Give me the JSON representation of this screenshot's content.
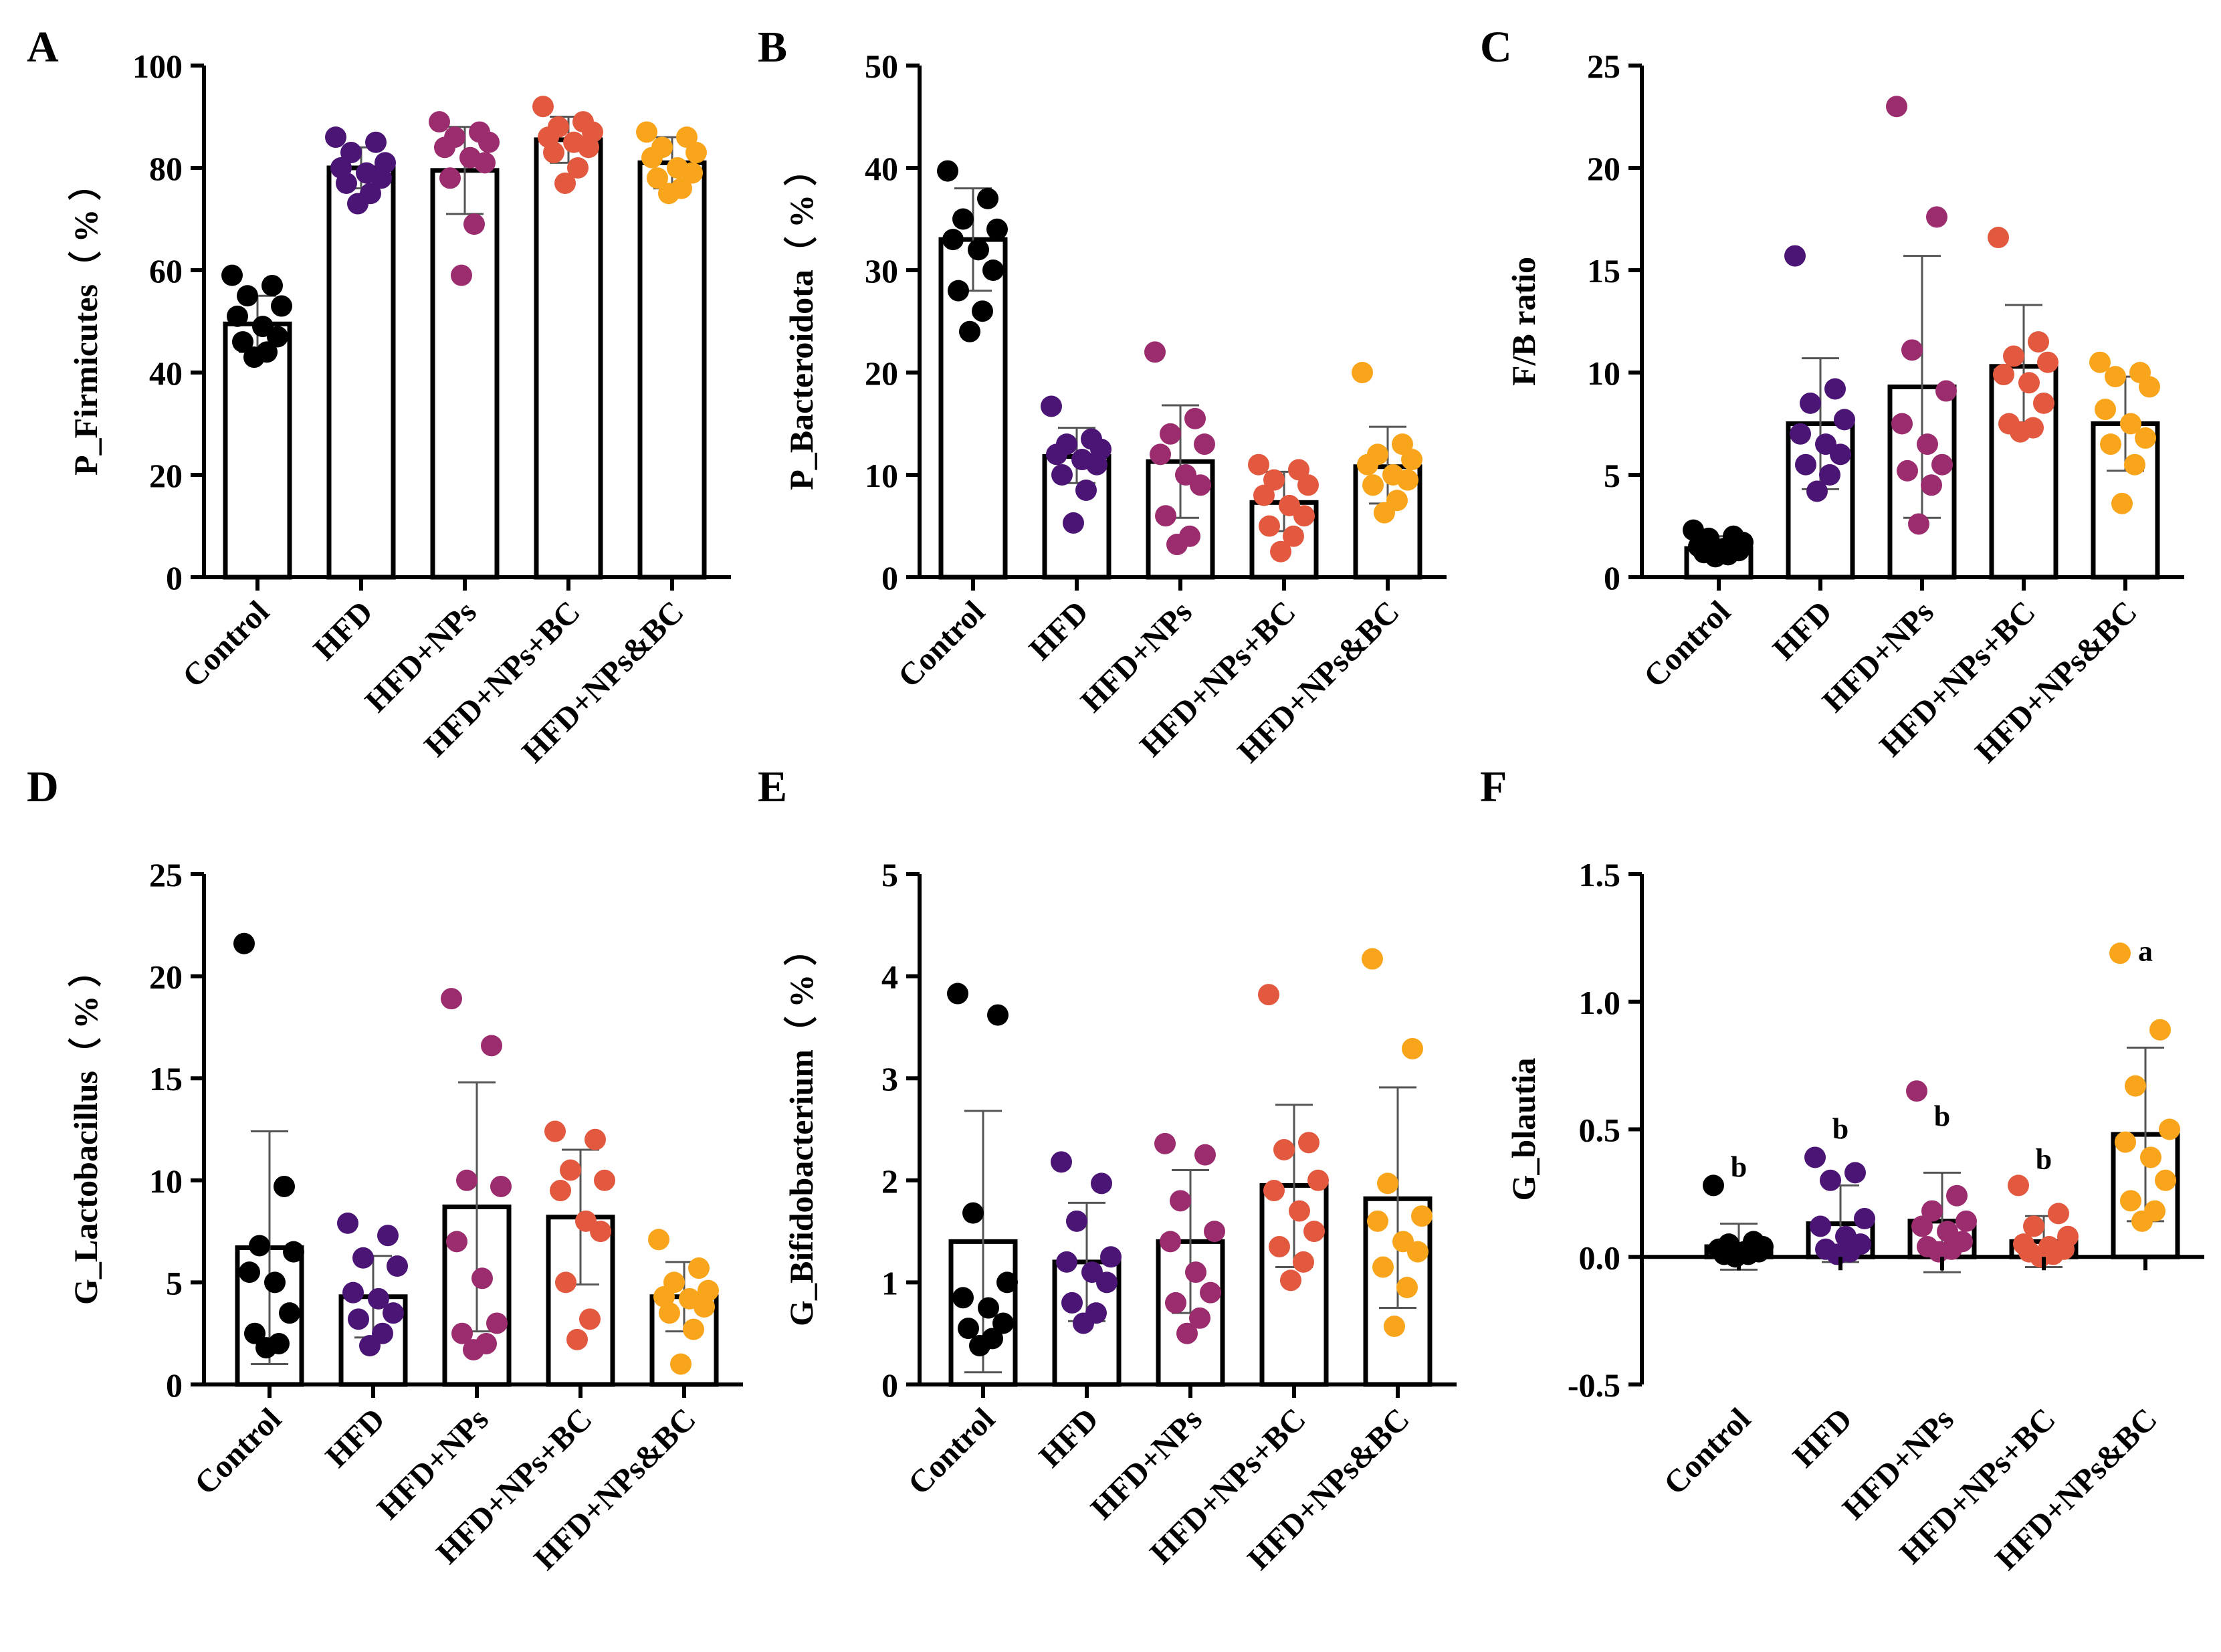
{
  "groups": [
    "Control",
    "HFD",
    "HFD+NPs",
    "HFD+NPs+BC",
    "HFD+NPs&BC"
  ],
  "colors": [
    "#000000",
    "#4b1576",
    "#9b2c6e",
    "#e2593f",
    "#f8a51c"
  ],
  "chart_data": [
    {
      "letter": "A",
      "type": "bar",
      "ylabel": "P_Firmicutes（ % ）",
      "ylim": [
        0,
        100
      ],
      "yticks": [
        "0",
        "20",
        "40",
        "60",
        "80",
        "100"
      ],
      "categories": [
        "Control",
        "HFD",
        "HFD+NPs",
        "HFD+NPs+BC",
        "HFD+NPs&BC"
      ],
      "means": [
        49.5,
        80,
        79.5,
        85.5,
        81
      ],
      "err_low": [
        44,
        76,
        71,
        81,
        76
      ],
      "err_high": [
        55,
        84,
        88,
        90,
        86
      ],
      "points": [
        [
          59,
          57,
          55,
          53,
          51,
          49,
          47,
          46,
          44,
          43
        ],
        [
          86,
          85,
          83,
          81,
          80,
          79,
          78,
          77,
          75,
          73
        ],
        [
          89,
          87,
          86,
          85,
          84,
          82,
          81,
          78,
          69,
          59
        ],
        [
          92,
          89,
          88,
          87,
          86,
          85,
          84,
          83,
          80,
          77
        ],
        [
          87,
          86,
          84,
          83,
          82,
          80,
          79,
          78,
          76,
          75
        ]
      ],
      "annotations": []
    },
    {
      "letter": "B",
      "type": "bar",
      "ylabel": "P_Bacteroidota（ % ）",
      "ylim": [
        0,
        50
      ],
      "yticks": [
        "0",
        "10",
        "20",
        "30",
        "40",
        "50"
      ],
      "categories": [
        "Control",
        "HFD",
        "HFD+NPs",
        "HFD+NPs+BC",
        "HFD+NPs&BC"
      ],
      "means": [
        33,
        11.8,
        11.3,
        7.3,
        10.8
      ],
      "err_low": [
        28,
        9.2,
        5.8,
        4.5,
        7.2
      ],
      "err_high": [
        38,
        14.6,
        16.8,
        10.3,
        14.7
      ],
      "points": [
        [
          39.7,
          37,
          35,
          34,
          33,
          32,
          30,
          28,
          26,
          24
        ],
        [
          16.7,
          13.5,
          13,
          12.5,
          12,
          11.5,
          11,
          10,
          8.5,
          5.3
        ],
        [
          22,
          15.5,
          14,
          13,
          12,
          10,
          9,
          6,
          4,
          3.2
        ],
        [
          11,
          10.5,
          9.5,
          9,
          8,
          7,
          6,
          5,
          4,
          2.5
        ],
        [
          20,
          13,
          12,
          11.5,
          11,
          10,
          9.5,
          9,
          7.5,
          6.3
        ]
      ],
      "annotations": []
    },
    {
      "letter": "C",
      "type": "bar",
      "ylabel": "F/B ratio",
      "ylim": [
        0,
        25
      ],
      "yticks": [
        "0",
        "5",
        "10",
        "15",
        "20",
        "25"
      ],
      "categories": [
        "Control",
        "HFD",
        "HFD+NPs",
        "HFD+NPs+BC",
        "HFD+NPs&BC"
      ],
      "means": [
        1.4,
        7.5,
        9.3,
        10.3,
        7.5
      ],
      "err_low": [
        0.9,
        4.3,
        2.9,
        7.3,
        5.2
      ],
      "err_high": [
        2.0,
        10.7,
        15.7,
        13.3,
        9.8
      ],
      "points": [
        [
          2.3,
          2.0,
          1.9,
          1.7,
          1.5,
          1.4,
          1.3,
          1.2,
          1.1,
          1.0
        ],
        [
          15.7,
          9.2,
          8.5,
          7.7,
          7,
          6.5,
          6,
          5.5,
          5,
          4.2
        ],
        [
          23,
          17.6,
          11.1,
          9.1,
          7.5,
          6.5,
          5.5,
          5.2,
          4.5,
          2.6
        ],
        [
          16.6,
          11.5,
          10.8,
          10.5,
          9.9,
          9.5,
          8.5,
          7.5,
          7.3,
          7.1
        ],
        [
          10.5,
          10,
          9.8,
          9.3,
          8.2,
          7.5,
          6.8,
          6.5,
          5.5,
          3.6
        ]
      ],
      "annotations": []
    },
    {
      "letter": "D",
      "type": "bar",
      "ylabel": "G_Lactobacillus（ % ）",
      "ylim": [
        0,
        25
      ],
      "yticks": [
        "0",
        "5",
        "10",
        "15",
        "20",
        "25"
      ],
      "categories": [
        "Control",
        "HFD",
        "HFD+NPs",
        "HFD+NPs+BC",
        "HFD+NPs&BC"
      ],
      "means": [
        6.7,
        4.3,
        8.7,
        8.2,
        4.3
      ],
      "err_low": [
        1.0,
        2.3,
        2.6,
        4.9,
        2.6
      ],
      "err_high": [
        12.4,
        6.3,
        14.8,
        11.5,
        6.0
      ],
      "points": [
        [
          21.6,
          9.7,
          6.8,
          6.5,
          5.5,
          5.0,
          3.5,
          2.5,
          2.0,
          1.8
        ],
        [
          7.9,
          7.3,
          6.2,
          5.8,
          4.5,
          4.2,
          3.5,
          3.2,
          2.5,
          1.9
        ],
        [
          18.9,
          16.6,
          10,
          9.7,
          7,
          5.2,
          3,
          2.5,
          2.0,
          1.7
        ],
        [
          12.4,
          12,
          10.5,
          10,
          9.5,
          8,
          7.5,
          5,
          3.2,
          2.2
        ],
        [
          7.1,
          5.7,
          5,
          4.6,
          4.3,
          4.2,
          3.8,
          3.5,
          2.7,
          1.0
        ]
      ],
      "annotations": []
    },
    {
      "letter": "E",
      "type": "bar",
      "ylabel": "G_Bifidobacterium（ % ）",
      "ylim": [
        0,
        5
      ],
      "yticks": [
        "0",
        "1",
        "2",
        "3",
        "4",
        "5"
      ],
      "categories": [
        "Control",
        "HFD",
        "HFD+NPs",
        "HFD+NPs+BC",
        "HFD+NPs&BC"
      ],
      "means": [
        1.4,
        1.2,
        1.4,
        1.95,
        1.82
      ],
      "err_low": [
        0.12,
        0.62,
        0.7,
        1.15,
        0.75
      ],
      "err_high": [
        2.68,
        1.78,
        2.1,
        2.74,
        2.91
      ],
      "points": [
        [
          3.83,
          3.62,
          1.68,
          1.0,
          0.85,
          0.75,
          0.6,
          0.55,
          0.45,
          0.38
        ],
        [
          2.18,
          1.97,
          1.6,
          1.25,
          1.2,
          1.1,
          1.0,
          0.8,
          0.7,
          0.6
        ],
        [
          2.36,
          2.25,
          1.8,
          1.5,
          1.4,
          1.1,
          0.9,
          0.8,
          0.65,
          0.5
        ],
        [
          3.82,
          2.37,
          2.3,
          2.0,
          1.9,
          1.7,
          1.5,
          1.35,
          1.2,
          1.02
        ],
        [
          4.17,
          3.29,
          1.97,
          1.65,
          1.6,
          1.4,
          1.3,
          1.15,
          0.95,
          0.57
        ]
      ],
      "annotations": []
    },
    {
      "letter": "F",
      "type": "bar",
      "ylabel": "G_blautia",
      "ylim": [
        -0.5,
        1.5
      ],
      "yticks": [
        "-0.5",
        "0.0",
        "0.5",
        "1.0",
        "1.5"
      ],
      "categories": [
        "Control",
        "HFD",
        "HFD+NPs",
        "HFD+NPs+BC",
        "HFD+NPs&BC"
      ],
      "means": [
        0.04,
        0.13,
        0.14,
        0.06,
        0.48
      ],
      "err_low": [
        -0.05,
        -0.02,
        -0.06,
        -0.04,
        0.14
      ],
      "err_high": [
        0.13,
        0.28,
        0.33,
        0.16,
        0.82
      ],
      "points": [
        [
          0.28,
          0.06,
          0.05,
          0.04,
          0.03,
          0.02,
          0.02,
          0.01,
          0.01,
          0.0
        ],
        [
          0.39,
          0.33,
          0.3,
          0.15,
          0.12,
          0.08,
          0.05,
          0.03,
          0.02,
          0.01
        ],
        [
          0.65,
          0.24,
          0.18,
          0.14,
          0.12,
          0.1,
          0.06,
          0.04,
          0.03,
          0.02
        ],
        [
          0.28,
          0.17,
          0.12,
          0.08,
          0.05,
          0.04,
          0.03,
          0.02,
          0.01,
          0.0
        ],
        [
          1.19,
          0.89,
          0.67,
          0.5,
          0.45,
          0.39,
          0.3,
          0.22,
          0.18,
          0.14
        ]
      ],
      "annotations": [
        "b",
        "b",
        "b",
        "b",
        "a"
      ]
    }
  ]
}
